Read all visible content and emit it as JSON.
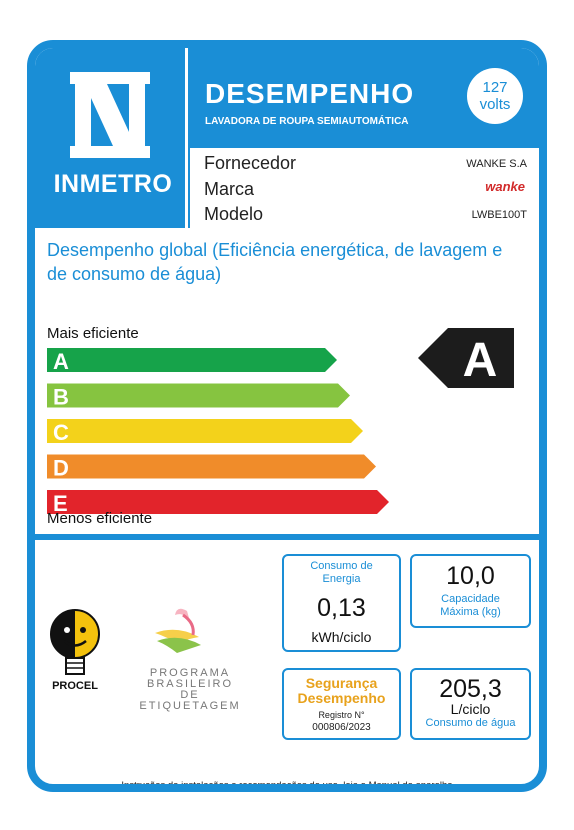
{
  "header": {
    "logo_text": "INMETRO",
    "title": "DESEMPENHO",
    "subtitle": "LAVADORA DE ROUPA SEMIAUTOMÁTICA",
    "voltage_number": "127",
    "voltage_unit": "volts"
  },
  "info": {
    "fornecedor_label": "Fornecedor",
    "fornecedor_value": "WANKE S.A",
    "marca_label": "Marca",
    "marca_value": "wanke",
    "modelo_label": "Modelo",
    "modelo_value": "LWBE100T"
  },
  "description": {
    "main": "Desempenho global",
    "detail": "(Eficiência energética, de lavagem e de consumo de água)"
  },
  "scale": {
    "more_label": "Mais eficiente",
    "less_label": "Menos eficiente",
    "classes": [
      "A",
      "B",
      "C",
      "D",
      "E"
    ],
    "colors": [
      "#16a34a",
      "#86c440",
      "#f3d21b",
      "#f08c2a",
      "#e2242b"
    ],
    "rating": "A"
  },
  "energy": {
    "label": "Consumo de Energia",
    "value": "0,13",
    "unit": "kWh/ciclo"
  },
  "capacity": {
    "value": "10,0",
    "label": "Capacidade Máxima (kg)"
  },
  "registration": {
    "line1": "Segurança",
    "line2": "Desempenho",
    "reg_label": "Registro N°",
    "reg_number": "000806/2023"
  },
  "water": {
    "value": "205,3",
    "unit": "L/ciclo",
    "label": "Consumo de água"
  },
  "logos": {
    "procel": "PROCEL",
    "pbe_line1": "PROGRAMA",
    "pbe_line2": "BRASILEIRO DE",
    "pbe_line3": "ETIQUETAGEM"
  },
  "footer": "Instruções de instalações e recomendações de uso, leia o Manual do aparelho"
}
